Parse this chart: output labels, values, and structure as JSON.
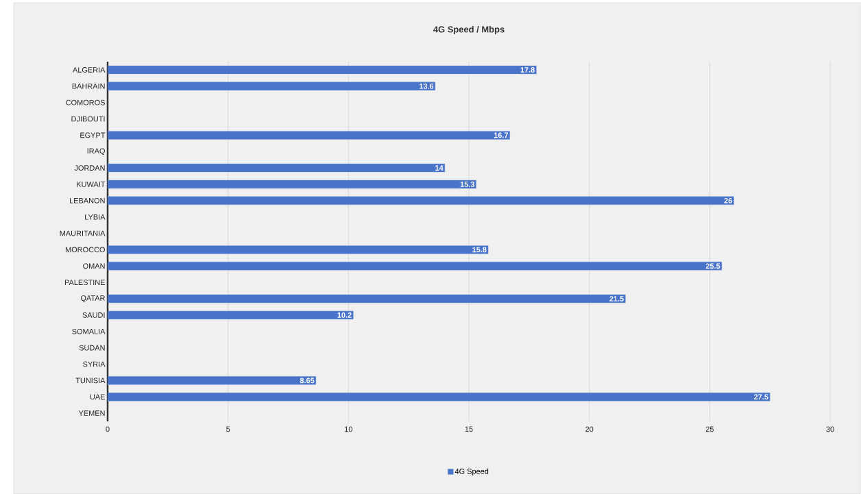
{
  "chart_data": {
    "type": "bar",
    "orientation": "horizontal",
    "title": "4G Speed / Mbps",
    "categories": [
      "ALGERIA",
      "BAHRAIN",
      "COMOROS",
      "DJIBOUTI",
      "EGYPT",
      "IRAQ",
      "JORDAN",
      "KUWAIT",
      "LEBANON",
      "LYBIA",
      "MAURITANIA",
      "MOROCCO",
      "OMAN",
      "PALESTINE",
      "QATAR",
      "SAUDI",
      "SOMALIA",
      "SUDAN",
      "SYRIA",
      "TUNISIA",
      "UAE",
      "YEMEN"
    ],
    "series": [
      {
        "name": "4G Speed",
        "color": "#4a74c9",
        "values": [
          17.8,
          13.6,
          null,
          null,
          16.7,
          null,
          14,
          15.3,
          26,
          null,
          null,
          15.8,
          25.5,
          null,
          21.5,
          10.2,
          null,
          null,
          null,
          8.65,
          27.5,
          null
        ]
      }
    ],
    "xlim": [
      0,
      30
    ],
    "xticks": [
      0,
      5,
      10,
      15,
      20,
      25,
      30
    ],
    "grid": "x",
    "legend": "bottom",
    "data_labels": true
  }
}
